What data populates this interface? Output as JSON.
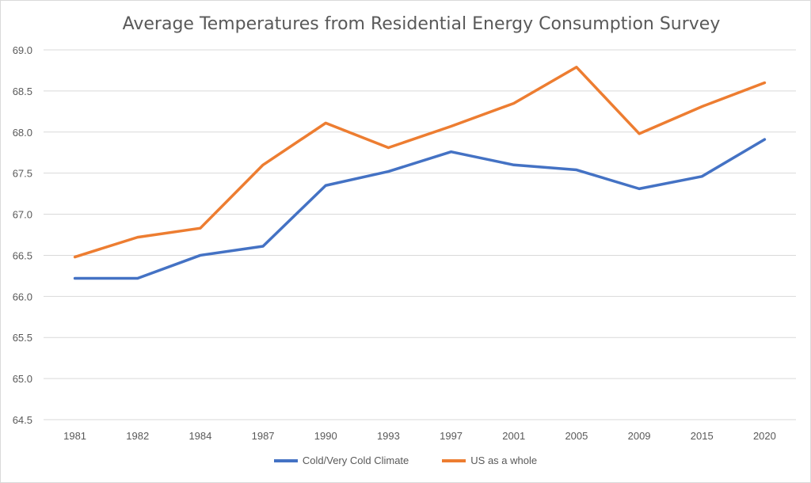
{
  "chart_data": {
    "type": "line",
    "title": "Average Temperatures from Residential Energy Consumption Survey",
    "xlabel": "",
    "ylabel": "",
    "categories": [
      "1981",
      "1982",
      "1984",
      "1987",
      "1990",
      "1993",
      "1997",
      "2001",
      "2005",
      "2009",
      "2015",
      "2020"
    ],
    "ylim": [
      64.5,
      69.0
    ],
    "yticks": [
      "64.5",
      "65.0",
      "65.5",
      "66.0",
      "66.5",
      "67.0",
      "67.5",
      "68.0",
      "68.5",
      "69.0"
    ],
    "grid": true,
    "legend_position": "bottom",
    "series": [
      {
        "name": "Cold/Very Cold Climate",
        "color": "#4472c4",
        "values": [
          66.22,
          66.22,
          66.5,
          66.61,
          67.35,
          67.52,
          67.76,
          67.6,
          67.54,
          67.31,
          67.46,
          67.91
        ]
      },
      {
        "name": "US as a whole",
        "color": "#ed7d31",
        "values": [
          66.48,
          66.72,
          66.83,
          67.6,
          68.11,
          67.81,
          68.07,
          68.35,
          68.79,
          67.98,
          68.31,
          68.6
        ]
      }
    ]
  }
}
